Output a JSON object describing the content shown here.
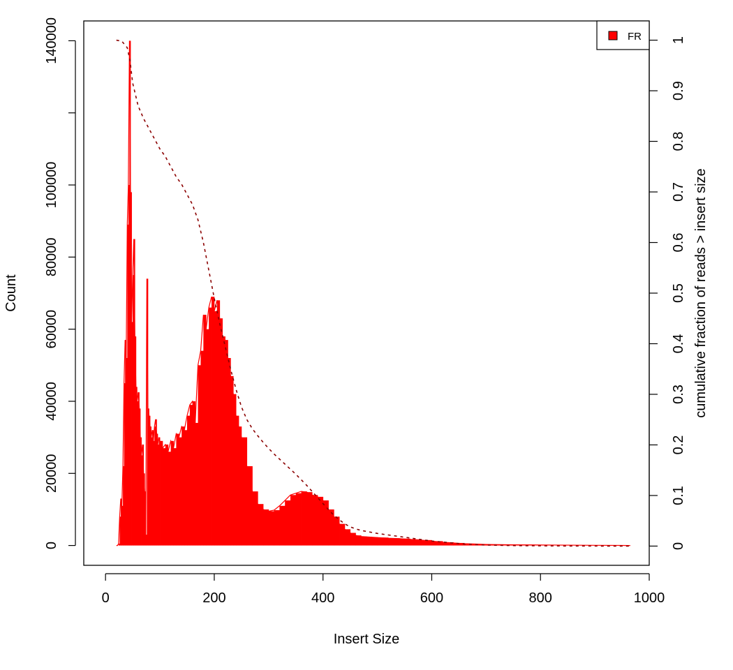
{
  "chart_data": {
    "type": "bar",
    "xlabel": "Insert Size",
    "ylabel": "Count",
    "y2label": "cumulative fraction of reads > insert size",
    "xlim": [
      -40,
      1000
    ],
    "ylim": [
      -5500,
      145500
    ],
    "y2lim": [
      -0.038,
      1.038
    ],
    "x_ticks": [
      0,
      200,
      400,
      600,
      800,
      1000
    ],
    "y_ticks": [
      0,
      20000,
      40000,
      60000,
      80000,
      100000,
      120000,
      140000
    ],
    "y_tick_labels": [
      "0",
      "20000",
      "40000",
      "60000",
      "80000",
      "100000",
      "",
      "140000"
    ],
    "y2_ticks": [
      0,
      0.1,
      0.2,
      0.3,
      0.4,
      0.5,
      0.6,
      0.7,
      0.8,
      0.9,
      1
    ],
    "y2_tick_labels": [
      "0",
      "0.1",
      "0.2",
      "0.3",
      "0.4",
      "0.5",
      "0.6",
      "0.7",
      "0.8",
      "0.9",
      "1"
    ],
    "grid": false,
    "legend_position": "top-right",
    "series": [
      {
        "name": "FR",
        "kind": "histogram",
        "color": "#ff0000",
        "x": [
          20,
          22,
          24,
          26,
          28,
          30,
          32,
          34,
          36,
          38,
          40,
          42,
          44,
          46,
          48,
          50,
          52,
          54,
          56,
          58,
          60,
          62,
          64,
          66,
          68,
          70,
          72,
          74,
          76,
          78,
          80,
          82,
          84,
          86,
          88,
          90,
          92,
          94,
          96,
          98,
          100,
          105,
          110,
          115,
          120,
          125,
          130,
          135,
          140,
          145,
          150,
          155,
          160,
          165,
          170,
          175,
          180,
          185,
          190,
          195,
          200,
          205,
          210,
          215,
          220,
          225,
          230,
          235,
          240,
          245,
          250,
          260,
          270,
          280,
          290,
          300,
          310,
          320,
          330,
          340,
          350,
          360,
          370,
          380,
          390,
          400,
          410,
          420,
          430,
          440,
          450,
          460,
          470,
          480,
          490,
          500,
          520,
          540,
          560,
          580,
          600,
          620,
          640,
          660,
          680,
          700,
          750,
          800,
          850,
          900,
          965
        ],
        "values": [
          0,
          0,
          500,
          8000,
          13000,
          11000,
          22000,
          45000,
          57000,
          52000,
          89000,
          100000,
          140000,
          98000,
          62000,
          75000,
          85000,
          58000,
          44000,
          40000,
          42500,
          38000,
          30000,
          25000,
          28000,
          20000,
          15000,
          3000,
          74000,
          38000,
          36000,
          33000,
          30000,
          32000,
          29000,
          33000,
          35000,
          31000,
          28000,
          30000,
          29000,
          27000,
          28000,
          26000,
          29000,
          27000,
          31000,
          30000,
          33000,
          32000,
          36000,
          39000,
          40000,
          34000,
          50000,
          54000,
          64000,
          60000,
          66000,
          69000,
          65000,
          68000,
          63000,
          58000,
          57000,
          52000,
          47000,
          42000,
          36000,
          33000,
          30000,
          22000,
          15000,
          11500,
          10000,
          9500,
          9800,
          11000,
          12500,
          14000,
          14500,
          15000,
          14800,
          14000,
          13500,
          12500,
          10000,
          8000,
          6000,
          4500,
          3500,
          2800,
          2500,
          2400,
          2300,
          2200,
          2000,
          1900,
          1700,
          1500,
          1200,
          900,
          700,
          500,
          400,
          300,
          200,
          150,
          100,
          50,
          0
        ]
      },
      {
        "name": "",
        "kind": "cumulative",
        "color": "#8b0000",
        "style": "dashed",
        "x": [
          20,
          30,
          40,
          45,
          50,
          60,
          70,
          80,
          90,
          100,
          110,
          120,
          130,
          140,
          150,
          160,
          170,
          180,
          190,
          200,
          210,
          220,
          230,
          240,
          250,
          260,
          270,
          280,
          290,
          300,
          310,
          320,
          330,
          340,
          350,
          360,
          370,
          380,
          390,
          400,
          410,
          420,
          430,
          440,
          450,
          460,
          470,
          480,
          490,
          500,
          520,
          540,
          560,
          580,
          600,
          620,
          640,
          660,
          680,
          700,
          750,
          800,
          850,
          900,
          965
        ],
        "values": [
          1,
          0.998,
          0.985,
          0.96,
          0.915,
          0.87,
          0.845,
          0.825,
          0.805,
          0.785,
          0.77,
          0.75,
          0.73,
          0.715,
          0.695,
          0.675,
          0.645,
          0.6,
          0.545,
          0.49,
          0.44,
          0.395,
          0.35,
          0.31,
          0.275,
          0.25,
          0.232,
          0.218,
          0.205,
          0.193,
          0.182,
          0.172,
          0.162,
          0.152,
          0.142,
          0.131,
          0.12,
          0.108,
          0.096,
          0.084,
          0.072,
          0.061,
          0.052,
          0.044,
          0.038,
          0.034,
          0.031,
          0.029,
          0.027,
          0.025,
          0.022,
          0.019,
          0.016,
          0.013,
          0.01,
          0.008,
          0.006,
          0.004,
          0.003,
          0.002,
          0.001,
          0.0005,
          0.0002,
          0.0001,
          0
        ]
      }
    ]
  }
}
